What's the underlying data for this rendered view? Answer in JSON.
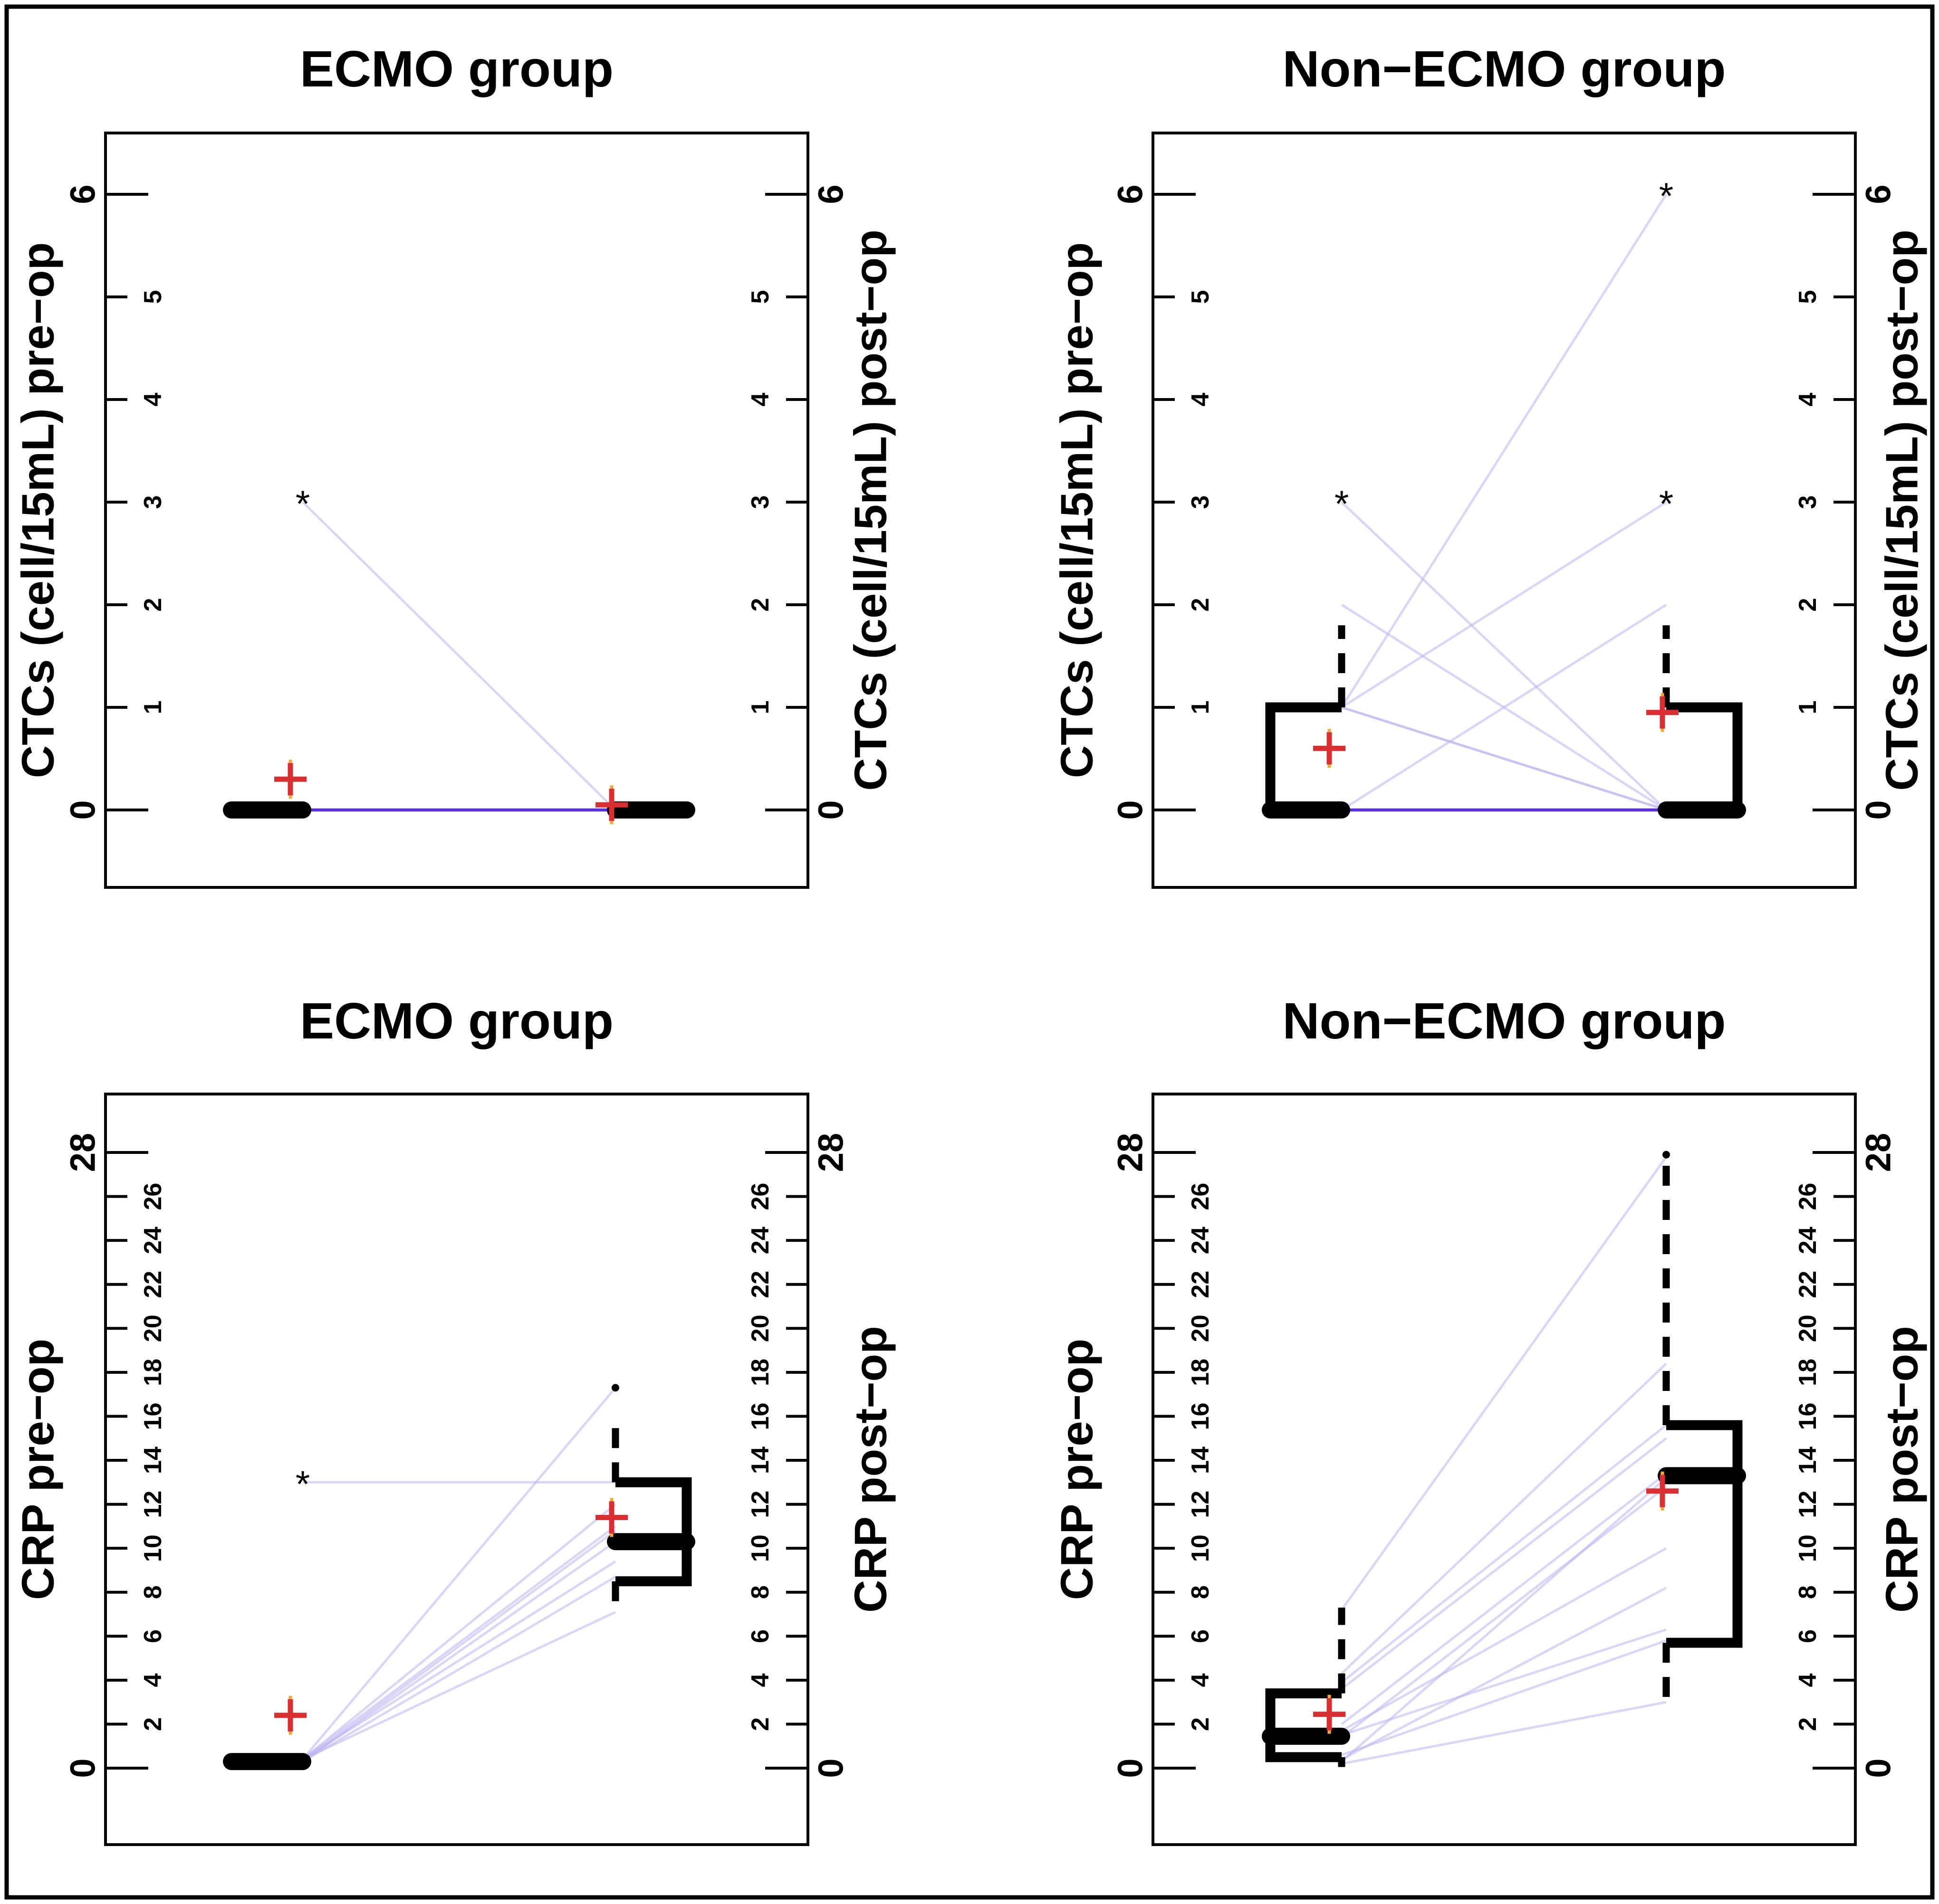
{
  "figure": {
    "background": "#ffffff",
    "border_color": "#000000"
  },
  "chart_data": {
    "type": "paired-boxplot-figure",
    "description": "Four panels of paired pre-op vs post-op values with half boxplots, dashed whiskers, red plus mean markers, star/dot outliers and per-subject connecting lines",
    "colors": {
      "ink": "#000000",
      "pair_line": "#beb2f0",
      "pair_line_dense": "#5c2fe0",
      "mean_marker": "#d92f32",
      "mean_underlay": "#f2a93b",
      "background": "#ffffff"
    },
    "legend": "none",
    "panels": [
      {
        "id": "ctcs-ecmo",
        "row": 0,
        "col": 0,
        "title": "ECMO group",
        "y_axis": {
          "limits": [
            0,
            6
          ],
          "major_ticks": [
            0,
            6
          ],
          "minor_ticks": [
            1,
            2,
            3,
            4,
            5
          ],
          "left_label": "CTCs (cell/15mL) pre−op",
          "right_label": "CTCs (cell/15mL) post−op"
        },
        "groups": [
          {
            "name": "pre-op",
            "median": 0,
            "q1": 0,
            "q3": 0,
            "whisker_low": null,
            "whisker_high": null,
            "outliers_star": [
              3
            ],
            "outliers_dot": [],
            "mean": 0.3
          },
          {
            "name": "post-op",
            "median": 0,
            "q1": 0,
            "q3": 0,
            "whisker_low": null,
            "whisker_high": null,
            "outliers_star": [],
            "outliers_dot": [],
            "mean": 0.05
          }
        ],
        "pairs": [
          [
            3,
            0
          ],
          [
            0,
            0
          ],
          [
            0,
            0
          ],
          [
            0,
            0
          ],
          [
            0,
            0
          ],
          [
            0,
            0
          ],
          [
            0,
            0
          ],
          [
            0,
            0
          ],
          [
            0,
            0
          ]
        ]
      },
      {
        "id": "ctcs-non-ecmo",
        "row": 0,
        "col": 1,
        "title": "Non−ECMO group",
        "y_axis": {
          "limits": [
            0,
            6
          ],
          "major_ticks": [
            0,
            6
          ],
          "minor_ticks": [
            1,
            2,
            3,
            4,
            5
          ],
          "left_label": "CTCs (cell/15mL) pre−op",
          "right_label": "CTCs (cell/15mL) post−op"
        },
        "groups": [
          {
            "name": "pre-op",
            "median": 0,
            "q1": 0,
            "q3": 1,
            "whisker_low": null,
            "whisker_high": 1.8,
            "outliers_star": [
              3
            ],
            "outliers_dot": [],
            "mean": 0.6
          },
          {
            "name": "post-op",
            "median": 0,
            "q1": 0,
            "q3": 1,
            "whisker_low": null,
            "whisker_high": 1.8,
            "outliers_star": [
              3,
              6
            ],
            "outliers_dot": [],
            "mean": 0.95
          }
        ],
        "pairs": [
          [
            3,
            0
          ],
          [
            2,
            0
          ],
          [
            1,
            6
          ],
          [
            1,
            3
          ],
          [
            1,
            0
          ],
          [
            1,
            0
          ],
          [
            0,
            2
          ],
          [
            0,
            0
          ],
          [
            0,
            0
          ],
          [
            0,
            0
          ],
          [
            0,
            0
          ],
          [
            0,
            0
          ]
        ]
      },
      {
        "id": "crp-ecmo",
        "row": 1,
        "col": 0,
        "title": "ECMO group",
        "y_axis": {
          "limits": [
            0,
            28
          ],
          "major_ticks": [
            0,
            28
          ],
          "minor_ticks": [
            2,
            4,
            6,
            8,
            10,
            12,
            14,
            16,
            18,
            20,
            22,
            24,
            26
          ],
          "left_label": "CRP pre−op",
          "right_label": "CRP post−op"
        },
        "groups": [
          {
            "name": "pre-op",
            "median": 0.3,
            "q1": 0.3,
            "q3": 0.3,
            "whisker_low": null,
            "whisker_high": null,
            "outliers_star": [
              13
            ],
            "outliers_dot": [],
            "mean": 2.4
          },
          {
            "name": "post-op",
            "median": 10.3,
            "q1": 8.5,
            "q3": 13.0,
            "whisker_low": 7.1,
            "whisker_high": 15.8,
            "outliers_star": [],
            "outliers_dot": [
              17.3
            ],
            "mean": 11.4
          }
        ],
        "pairs": [
          [
            13,
            13.0
          ],
          [
            0.4,
            17.3
          ],
          [
            0.4,
            12.0
          ],
          [
            0.4,
            11.0
          ],
          [
            0.3,
            10.3
          ],
          [
            0.4,
            9.4
          ],
          [
            0.3,
            8.7
          ],
          [
            0.4,
            7.1
          ],
          [
            0.3,
            10.8
          ]
        ]
      },
      {
        "id": "crp-non-ecmo",
        "row": 1,
        "col": 1,
        "title": "Non−ECMO group",
        "y_axis": {
          "limits": [
            0,
            28
          ],
          "major_ticks": [
            0,
            28
          ],
          "minor_ticks": [
            2,
            4,
            6,
            8,
            10,
            12,
            14,
            16,
            18,
            20,
            22,
            24,
            26
          ],
          "left_label": "CRP pre−op",
          "right_label": "CRP post−op"
        },
        "groups": [
          {
            "name": "pre-op",
            "median": 1.45,
            "q1": 0.5,
            "q3": 3.4,
            "whisker_low": 0.05,
            "whisker_high": 7.3,
            "outliers_star": [],
            "outliers_dot": [],
            "mean": 2.45
          },
          {
            "name": "post-op",
            "median": 13.3,
            "q1": 5.7,
            "q3": 15.6,
            "whisker_low": 2.9,
            "whisker_high": 27.8,
            "outliers_star": [],
            "outliers_dot": [
              27.9
            ],
            "mean": 12.6
          }
        ],
        "pairs": [
          [
            7.2,
            27.8
          ],
          [
            4.3,
            18.4
          ],
          [
            3.9,
            15.6
          ],
          [
            3.6,
            15.0
          ],
          [
            2.0,
            13.4
          ],
          [
            0.3,
            13.2
          ],
          [
            1.4,
            12.8
          ],
          [
            1.7,
            10.0
          ],
          [
            0.4,
            8.2
          ],
          [
            1.5,
            6.3
          ],
          [
            0.6,
            5.8
          ],
          [
            0.2,
            3.0
          ]
        ]
      }
    ]
  }
}
